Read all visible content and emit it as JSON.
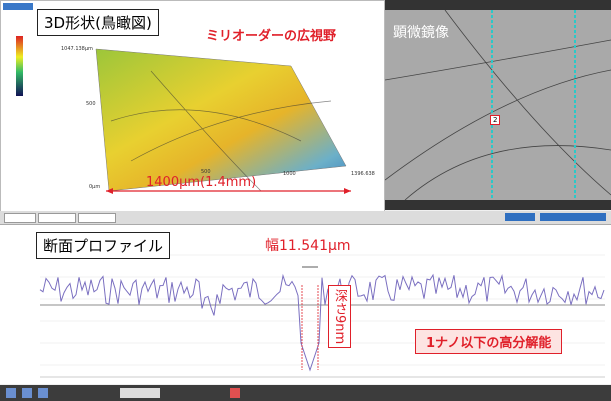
{
  "left_panel": {
    "title": "3D形状(鳥瞰図)",
    "caption": "ミリオーダーの広視野",
    "width_label": "1400μm(1.4mm)",
    "axis_labels": [
      "1047.138μm",
      "500",
      "0μm",
      "500",
      "1000",
      "1396.638"
    ]
  },
  "right_panel": {
    "title": "顕微鏡像",
    "marker": "2"
  },
  "profile_panel": {
    "title": "断面プロファイル",
    "width_label": "幅11.541μm",
    "depth_label": "深さ9nm",
    "resolution_label": "1ナノ以下の高分解能"
  }
}
